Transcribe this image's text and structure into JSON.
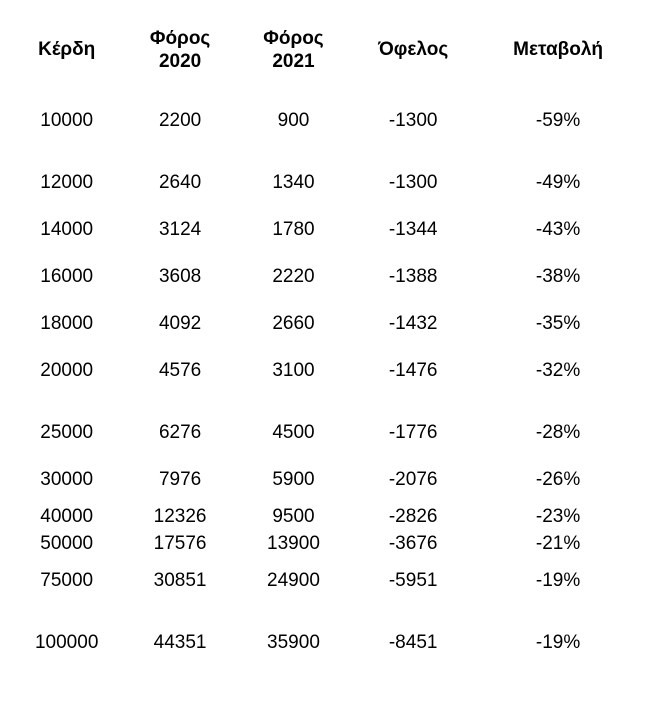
{
  "table": {
    "type": "table",
    "background_color": "#ffffff",
    "text_color": "#000000",
    "header_fontsize": 19,
    "cell_fontsize": 19,
    "font_family": "Arial, Helvetica, sans-serif",
    "columns": [
      {
        "key": "kerdi",
        "label": "Κέρδη",
        "label2": "",
        "width_pct": 18,
        "align": "center"
      },
      {
        "key": "tax2020",
        "label": "Φόρος",
        "label2": "2020",
        "width_pct": 18,
        "align": "center"
      },
      {
        "key": "tax2021",
        "label": "Φόρος",
        "label2": "2021",
        "width_pct": 18,
        "align": "center"
      },
      {
        "key": "ofelos",
        "label": "Όφελος",
        "label2": "",
        "width_pct": 20,
        "align": "center"
      },
      {
        "key": "change",
        "label": "Μεταβολή",
        "label2": "",
        "width_pct": 26,
        "align": "center"
      }
    ],
    "rows": [
      {
        "gap": "small",
        "cells": [
          "10000",
          "2200",
          "900",
          "-1300",
          "-59%"
        ]
      },
      {
        "gap": "big",
        "cells": [
          "12000",
          "2640",
          "1340",
          "-1300",
          "-49%"
        ]
      },
      {
        "gap": "small",
        "cells": [
          "14000",
          "3124",
          "1780",
          "-1344",
          "-43%"
        ]
      },
      {
        "gap": "small",
        "cells": [
          "16000",
          "3608",
          "2220",
          "-1388",
          "-38%"
        ]
      },
      {
        "gap": "small",
        "cells": [
          "18000",
          "4092",
          "2660",
          "-1432",
          "-35%"
        ]
      },
      {
        "gap": "small",
        "cells": [
          "20000",
          "4576",
          "3100",
          "-1476",
          "-32%"
        ]
      },
      {
        "gap": "big",
        "cells": [
          "25000",
          "6276",
          "4500",
          "-1776",
          "-28%"
        ]
      },
      {
        "gap": "small",
        "cells": [
          "30000",
          "7976",
          "5900",
          "-2076",
          "-26%"
        ]
      },
      {
        "gap": "tight",
        "cells": [
          "40000",
          "12326",
          "9500",
          "-2826",
          "-23%"
        ]
      },
      {
        "gap": "tight",
        "cells": [
          "50000",
          "17576",
          "13900",
          "-3676",
          "-21%"
        ]
      },
      {
        "gap": "small",
        "cells": [
          "75000",
          "30851",
          "24900",
          "-5951",
          "-19%"
        ]
      },
      {
        "gap": "big",
        "cells": [
          "100000",
          "44351",
          "35900",
          "-8451",
          "-19%"
        ]
      }
    ]
  }
}
